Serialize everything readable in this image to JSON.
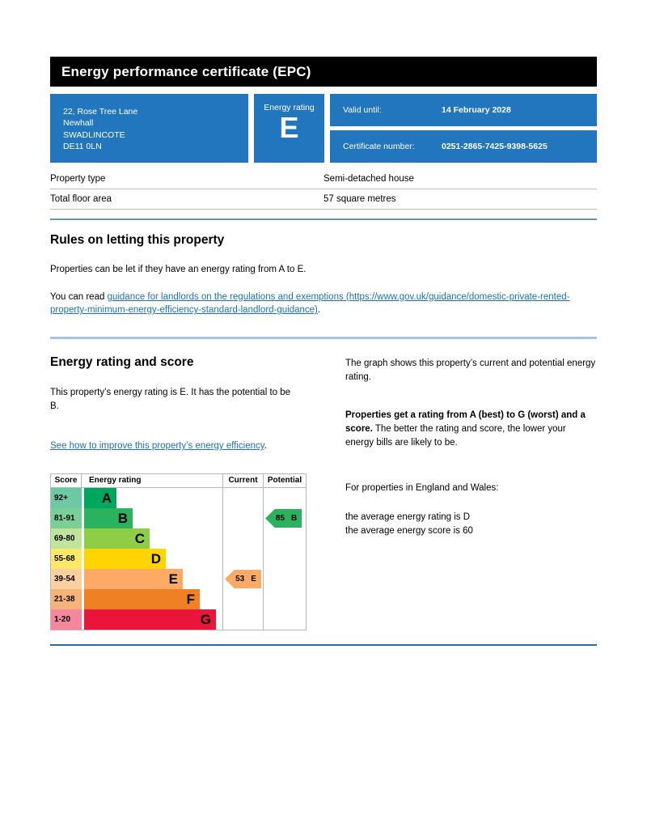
{
  "colors": {
    "brand_blue": "#2276bd",
    "link_blue": "#1d70b8",
    "header_bg": "#000000",
    "divider_steel": "#6e93a6",
    "divider_light_blue": "#a5c4e0",
    "divider_dark_blue": "#2a6ca3"
  },
  "header": {
    "title": "Energy performance certificate (EPC)"
  },
  "summary": {
    "address_lines": [
      "22, Rose Tree Lane",
      "Newhall",
      "SWADLINCOTE",
      "DE11 0LN"
    ],
    "energy_rating_label": "Energy rating",
    "energy_rating_value": "E",
    "valid_until_label": "Valid until:",
    "valid_until_value": "14 February 2028",
    "certificate_number_label": "Certificate number:",
    "certificate_number_value": "0251-2865-7425-9398-5625"
  },
  "facts": {
    "rows": [
      {
        "label": "Property type",
        "value": "Semi-detached house"
      },
      {
        "label": "Total floor area",
        "value": "57 square metres"
      }
    ]
  },
  "rules_section": {
    "heading": "Rules on letting this property",
    "para1": "Properties can be let if they have an energy rating from A to E.",
    "para2_prefix": "You can read ",
    "para2_link": "guidance for landlords on the regulations and exemptions (https://www.gov.uk/guidance/domestic-private-rented-property-minimum-energy-efficiency-standard-landlord-guidance)",
    "para2_suffix": "."
  },
  "rating_section": {
    "heading": "Energy rating and score",
    "left_para": "This property’s energy rating is E. It has the potential to be B.",
    "left_link": "See how to improve this property’s energy efficiency",
    "left_link_suffix": ".",
    "right_para1": "The graph shows this property’s current and potential energy rating.",
    "right_para2_bold": "Properties get a rating from A (best) to G (worst) and a score.",
    "right_para2_rest": " The better the rating and score, the lower your energy bills are likely to be.",
    "right_para3": "For properties in England and Wales:",
    "right_para4_line1": "the average energy rating is D",
    "right_para4_line2": "the average energy score is 60"
  },
  "chart_data": {
    "type": "bar",
    "title": "EPC energy rating bands with current and potential scores",
    "columns": [
      "Score",
      "Energy rating",
      "Current",
      "Potential"
    ],
    "bands": [
      {
        "score_range": "92+",
        "letter": "A",
        "color": "#00a65d",
        "tint": "#6cc9a4",
        "width_pct": 23
      },
      {
        "score_range": "81-91",
        "letter": "B",
        "color": "#2ab25f",
        "tint": "#79d096",
        "width_pct": 35
      },
      {
        "score_range": "69-80",
        "letter": "C",
        "color": "#8dce46",
        "tint": "#c0e49b",
        "width_pct": 47
      },
      {
        "score_range": "55-68",
        "letter": "D",
        "color": "#ffd500",
        "tint": "#ffe866",
        "width_pct": 59
      },
      {
        "score_range": "39-54",
        "letter": "E",
        "color": "#fcaa65",
        "tint": "#fccf9f",
        "width_pct": 71
      },
      {
        "score_range": "21-38",
        "letter": "F",
        "color": "#ef8023",
        "tint": "#f5b377",
        "width_pct": 83
      },
      {
        "score_range": "1-20",
        "letter": "G",
        "color": "#e9153b",
        "tint": "#f4879b",
        "width_pct": 95
      }
    ],
    "current": {
      "score": 53,
      "letter": "E",
      "band_index": 4,
      "color": "#fcaa65"
    },
    "potential": {
      "score": 85,
      "letter": "B",
      "band_index": 1,
      "color": "#2ab25f"
    }
  }
}
